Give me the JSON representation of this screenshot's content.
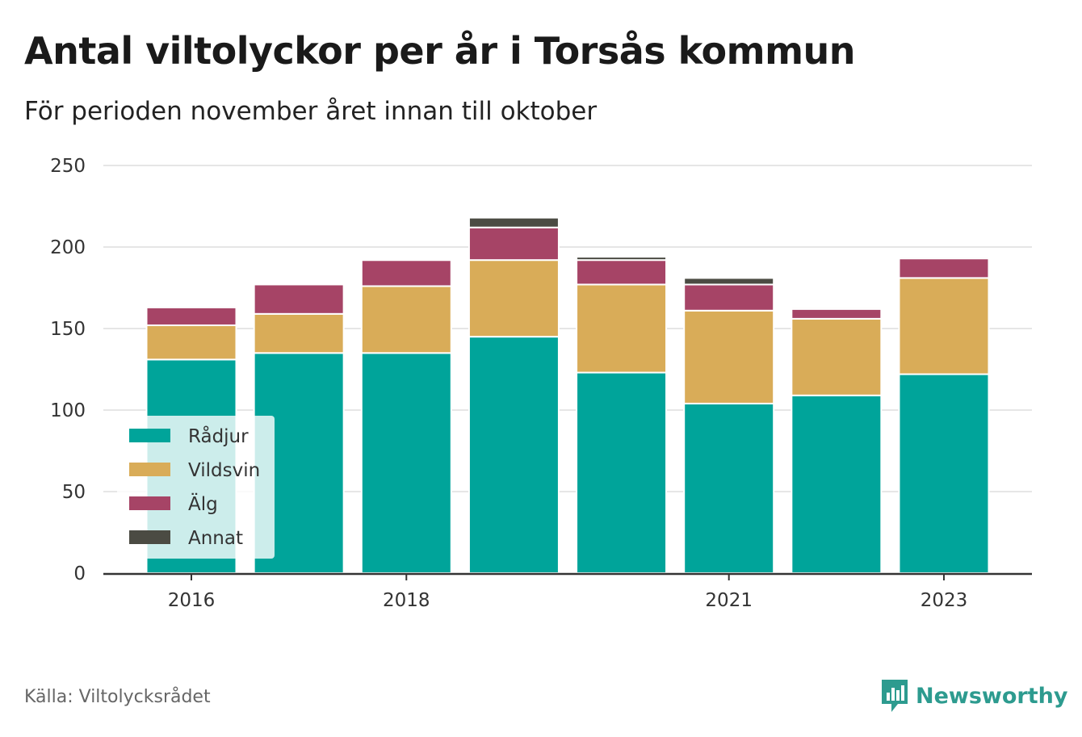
{
  "title": "Antal viltolyckor per år i Torsås kommun",
  "subtitle": "För perioden november året innan till oktober",
  "source": "Källa: Viltolycksrådet",
  "brand": {
    "name": "Newsworthy",
    "icon": "newsworthy-logo-icon",
    "color": "#2d9b8f"
  },
  "chart_data": {
    "type": "bar",
    "stacked": true,
    "title": "Antal viltolyckor per år i Torsås kommun",
    "subtitle": "För perioden november året innan till oktober",
    "xlabel": "",
    "ylabel": "",
    "categories": [
      "2016",
      "2017",
      "2018",
      "2019",
      "2020",
      "2021",
      "2022",
      "2023"
    ],
    "x_tick_labels": [
      "2016",
      "",
      "2018",
      "",
      "",
      "2021",
      "",
      "2023"
    ],
    "ylim": [
      0,
      250
    ],
    "yticks": [
      0,
      50,
      100,
      150,
      200,
      250
    ],
    "grid": true,
    "legend_position": "bottom-left",
    "series": [
      {
        "name": "Rådjur",
        "color": "#00a49a",
        "values": [
          131,
          135,
          135,
          145,
          123,
          104,
          109,
          122
        ]
      },
      {
        "name": "Vildsvin",
        "color": "#d9ac58",
        "values": [
          21,
          24,
          41,
          47,
          54,
          57,
          47,
          59
        ]
      },
      {
        "name": "Älg",
        "color": "#a64466",
        "values": [
          11,
          18,
          16,
          20,
          15,
          16,
          6,
          12
        ]
      },
      {
        "name": "Annat",
        "color": "#4b4b43",
        "values": [
          1,
          0,
          1,
          6,
          2,
          4,
          1,
          1
        ]
      }
    ]
  }
}
